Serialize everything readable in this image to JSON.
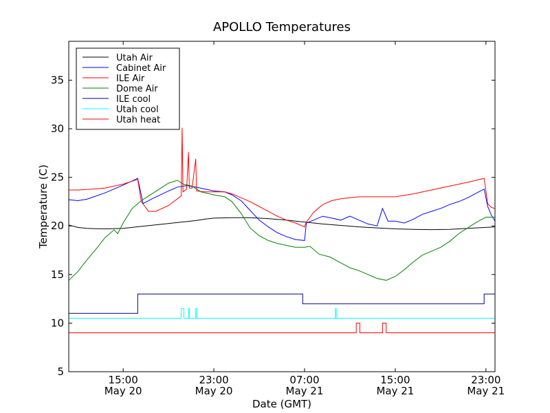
{
  "chart_data": {
    "type": "line",
    "title": "APOLLO Temperatures",
    "xlabel": "Date (GMT)",
    "ylabel": "Temperature (C)",
    "xlim": [
      12,
      35.5
    ],
    "ylim": [
      5,
      39
    ],
    "yticks": [
      5,
      10,
      15,
      20,
      25,
      30,
      35
    ],
    "xticks": [
      {
        "x": 15,
        "time": "15:00",
        "date": "May 20"
      },
      {
        "x": 20,
        "time": "23:00",
        "date": "May 20"
      },
      {
        "x": 25,
        "time": "07:00",
        "date": "May 21"
      },
      {
        "x": 30,
        "time": "15:00",
        "date": "May 21"
      },
      {
        "x": 35,
        "time": "23:00",
        "date": "May 21"
      }
    ],
    "legend_position": "top-left",
    "series": [
      {
        "name": "Utah Air",
        "color": "#000000",
        "points": [
          [
            12,
            20.1
          ],
          [
            12.5,
            19.85
          ],
          [
            13,
            19.75
          ],
          [
            14,
            19.7
          ],
          [
            15,
            19.75
          ],
          [
            16,
            19.95
          ],
          [
            17,
            20.15
          ],
          [
            18,
            20.35
          ],
          [
            19,
            20.55
          ],
          [
            19.5,
            20.7
          ],
          [
            20,
            20.8
          ],
          [
            21,
            20.85
          ],
          [
            22,
            20.85
          ],
          [
            23,
            20.75
          ],
          [
            24,
            20.6
          ],
          [
            25,
            20.4
          ],
          [
            26,
            20.2
          ],
          [
            27,
            20.05
          ],
          [
            28,
            19.9
          ],
          [
            29,
            19.8
          ],
          [
            30,
            19.7
          ],
          [
            31,
            19.65
          ],
          [
            32,
            19.62
          ],
          [
            33,
            19.65
          ],
          [
            34,
            19.75
          ],
          [
            35,
            19.85
          ],
          [
            35.5,
            19.9
          ]
        ]
      },
      {
        "name": "Cabinet Air",
        "color": "#0000ff",
        "points": [
          [
            12,
            22.7
          ],
          [
            12.5,
            22.6
          ],
          [
            13,
            22.75
          ],
          [
            14,
            23.4
          ],
          [
            15,
            24.2
          ],
          [
            15.8,
            24.9
          ],
          [
            16.1,
            22.3
          ],
          [
            16.6,
            22.8
          ],
          [
            17.5,
            23.6
          ],
          [
            18,
            24.0
          ],
          [
            18.5,
            24.15
          ],
          [
            19,
            24.0
          ],
          [
            20,
            23.6
          ],
          [
            20.6,
            23.5
          ],
          [
            21,
            23.2
          ],
          [
            21.5,
            22.6
          ],
          [
            22,
            21.6
          ],
          [
            22.5,
            20.6
          ],
          [
            23,
            19.9
          ],
          [
            23.5,
            19.3
          ],
          [
            24,
            18.9
          ],
          [
            24.5,
            18.6
          ],
          [
            25,
            18.5
          ],
          [
            25.1,
            20.3
          ],
          [
            25.5,
            20.6
          ],
          [
            26,
            21.0
          ],
          [
            26.5,
            20.8
          ],
          [
            27,
            20.6
          ],
          [
            27.5,
            21.0
          ],
          [
            28,
            20.6
          ],
          [
            28.5,
            20.2
          ],
          [
            29,
            20.0
          ],
          [
            29.3,
            21.8
          ],
          [
            29.6,
            20.5
          ],
          [
            30,
            20.5
          ],
          [
            30.5,
            20.3
          ],
          [
            31,
            20.7
          ],
          [
            31.5,
            21.2
          ],
          [
            32,
            21.5
          ],
          [
            32.5,
            21.8
          ],
          [
            33,
            22.2
          ],
          [
            33.5,
            22.5
          ],
          [
            34,
            22.9
          ],
          [
            34.5,
            23.4
          ],
          [
            34.9,
            23.8
          ],
          [
            35.1,
            22.0
          ],
          [
            35.3,
            21.1
          ],
          [
            35.5,
            20.5
          ]
        ]
      },
      {
        "name": "ILE Air",
        "color": "#ff0000",
        "points": [
          [
            12,
            23.7
          ],
          [
            12.5,
            23.7
          ],
          [
            13,
            23.75
          ],
          [
            14,
            23.9
          ],
          [
            15,
            24.3
          ],
          [
            15.8,
            24.8
          ],
          [
            16.0,
            22.5
          ],
          [
            16.4,
            21.5
          ],
          [
            16.8,
            21.5
          ],
          [
            17.5,
            22.1
          ],
          [
            18,
            22.8
          ],
          [
            18.2,
            23.1
          ],
          [
            18.25,
            30.1
          ],
          [
            18.3,
            23.5
          ],
          [
            18.5,
            23.8
          ],
          [
            18.6,
            27.6
          ],
          [
            18.65,
            23.9
          ],
          [
            18.8,
            23.9
          ],
          [
            19.0,
            26.9
          ],
          [
            19.05,
            23.6
          ],
          [
            19.5,
            23.5
          ],
          [
            20,
            23.5
          ],
          [
            20.6,
            23.5
          ],
          [
            21,
            23.3
          ],
          [
            21.5,
            22.9
          ],
          [
            22,
            22.5
          ],
          [
            22.5,
            22.0
          ],
          [
            23,
            21.5
          ],
          [
            23.5,
            21.0
          ],
          [
            24,
            20.6
          ],
          [
            24.5,
            20.3
          ],
          [
            25,
            19.9
          ],
          [
            25.1,
            20.4
          ],
          [
            25.5,
            21.4
          ],
          [
            26,
            22.2
          ],
          [
            26.5,
            22.6
          ],
          [
            27,
            22.8
          ],
          [
            28,
            23.0
          ],
          [
            29,
            23.0
          ],
          [
            30,
            23.0
          ],
          [
            31,
            23.3
          ],
          [
            32,
            23.7
          ],
          [
            33,
            24.1
          ],
          [
            34,
            24.5
          ],
          [
            34.9,
            24.9
          ],
          [
            35.1,
            22.3
          ],
          [
            35.3,
            21.9
          ],
          [
            35.5,
            21.8
          ]
        ]
      },
      {
        "name": "Dome Air",
        "color": "#008000",
        "points": [
          [
            12,
            14.4
          ],
          [
            12.5,
            15.3
          ],
          [
            13,
            16.5
          ],
          [
            13.5,
            17.6
          ],
          [
            14,
            18.8
          ],
          [
            14.5,
            19.6
          ],
          [
            14.7,
            19.2
          ],
          [
            15,
            20.3
          ],
          [
            15.5,
            21.8
          ],
          [
            16,
            22.6
          ],
          [
            16.5,
            23.2
          ],
          [
            17,
            23.8
          ],
          [
            17.5,
            24.4
          ],
          [
            18,
            24.7
          ],
          [
            18.3,
            24.3
          ],
          [
            18.8,
            24.1
          ],
          [
            19.3,
            23.5
          ],
          [
            20,
            23.2
          ],
          [
            20.6,
            23.0
          ],
          [
            21,
            22.5
          ],
          [
            21.5,
            21.3
          ],
          [
            22,
            19.8
          ],
          [
            22.5,
            19.0
          ],
          [
            23,
            18.5
          ],
          [
            23.5,
            18.2
          ],
          [
            24,
            18.0
          ],
          [
            24.5,
            17.8
          ],
          [
            25,
            17.8
          ],
          [
            25.3,
            17.9
          ],
          [
            25.8,
            17.1
          ],
          [
            26.4,
            16.8
          ],
          [
            27,
            16.2
          ],
          [
            27.5,
            15.7
          ],
          [
            28,
            15.4
          ],
          [
            28.5,
            15.0
          ],
          [
            29,
            14.6
          ],
          [
            29.5,
            14.4
          ],
          [
            30,
            14.8
          ],
          [
            30.5,
            15.5
          ],
          [
            31,
            16.3
          ],
          [
            31.5,
            17.0
          ],
          [
            32,
            17.4
          ],
          [
            32.5,
            17.8
          ],
          [
            33,
            18.4
          ],
          [
            33.5,
            19.2
          ],
          [
            34,
            19.8
          ],
          [
            34.5,
            20.4
          ],
          [
            35,
            20.9
          ],
          [
            35.5,
            20.9
          ]
        ]
      },
      {
        "name": "ILE cool",
        "color": "#000080",
        "points": [
          [
            12,
            11
          ],
          [
            15.8,
            11
          ],
          [
            15.8,
            13
          ],
          [
            24.9,
            13
          ],
          [
            24.9,
            12
          ],
          [
            34.9,
            12
          ],
          [
            34.9,
            13
          ],
          [
            35.5,
            13
          ]
        ]
      },
      {
        "name": "Utah cool",
        "color": "#00ffff",
        "points": [
          [
            12,
            10.5
          ],
          [
            18.2,
            10.5
          ],
          [
            18.2,
            11.5
          ],
          [
            18.35,
            11.5
          ],
          [
            18.35,
            10.5
          ],
          [
            18.6,
            10.5
          ],
          [
            18.6,
            11.5
          ],
          [
            18.65,
            11.5
          ],
          [
            18.65,
            10.5
          ],
          [
            19.0,
            10.5
          ],
          [
            19.0,
            11.5
          ],
          [
            19.05,
            11.5
          ],
          [
            19.05,
            10.5
          ],
          [
            26.7,
            10.5
          ],
          [
            26.7,
            11.5
          ],
          [
            26.75,
            11.5
          ],
          [
            26.75,
            10.5
          ],
          [
            35.5,
            10.5
          ]
        ]
      },
      {
        "name": "Utah heat",
        "color": "#ff0000",
        "points": [
          [
            12,
            9
          ],
          [
            27.85,
            9
          ],
          [
            27.85,
            10
          ],
          [
            28.05,
            10
          ],
          [
            28.05,
            9
          ],
          [
            29.3,
            9
          ],
          [
            29.3,
            10
          ],
          [
            29.5,
            10
          ],
          [
            29.5,
            9
          ],
          [
            35.5,
            9
          ]
        ]
      }
    ]
  }
}
